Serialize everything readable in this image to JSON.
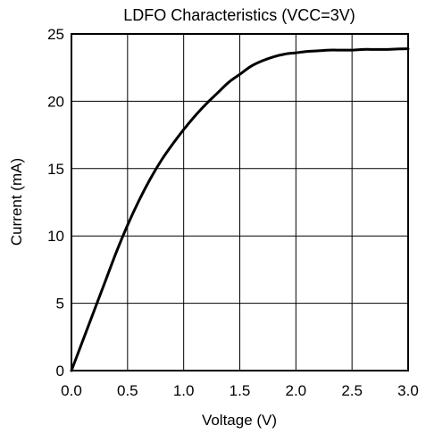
{
  "chart_data": {
    "type": "line",
    "title": "LDFO Characteristics (VCC=3V)",
    "xlabel": "Voltage  (V)",
    "ylabel": "Current  (mA)",
    "xlim": [
      0,
      3.0
    ],
    "ylim": [
      0,
      25
    ],
    "x_ticks": [
      "0.0",
      "0.5",
      "1.0",
      "1.5",
      "2.0",
      "2.5",
      "3.0"
    ],
    "y_ticks": [
      "0",
      "5",
      "10",
      "15",
      "20",
      "25"
    ],
    "grid": true,
    "series": [
      {
        "x": [
          0.0,
          0.1,
          0.2,
          0.3,
          0.4,
          0.5,
          0.6,
          0.7,
          0.8,
          0.9,
          1.0,
          1.1,
          1.2,
          1.3,
          1.4,
          1.5,
          1.6,
          1.7,
          1.8,
          1.9,
          2.0,
          2.1,
          2.2,
          2.3,
          2.4,
          2.5,
          2.6,
          2.7,
          2.8,
          2.9,
          3.0
        ],
        "y": [
          0.0,
          2.2,
          4.4,
          6.6,
          8.8,
          10.8,
          12.6,
          14.2,
          15.6,
          16.8,
          17.9,
          18.9,
          19.8,
          20.6,
          21.4,
          22.0,
          22.6,
          23.0,
          23.3,
          23.5,
          23.6,
          23.7,
          23.75,
          23.8,
          23.8,
          23.8,
          23.85,
          23.85,
          23.85,
          23.88,
          23.9
        ],
        "color": "#000000"
      }
    ]
  }
}
